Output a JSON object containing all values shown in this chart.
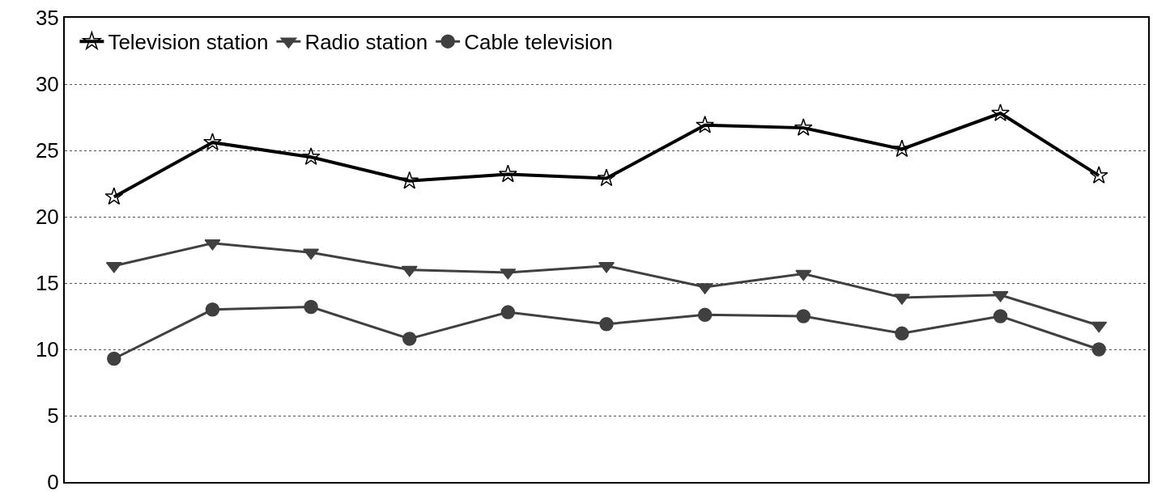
{
  "chart_data": {
    "type": "line",
    "categories": [
      null,
      null,
      null,
      null,
      null,
      null,
      null,
      null,
      null,
      null,
      null
    ],
    "series": [
      {
        "name": "Television station",
        "color": "#000000",
        "marker": "star",
        "values": [
          21.5,
          25.6,
          24.5,
          22.7,
          23.2,
          22.9,
          26.9,
          26.7,
          25.1,
          27.8,
          23.1
        ]
      },
      {
        "name": "Radio station",
        "color": "#404040",
        "marker": "triangle",
        "values": [
          16.3,
          18.0,
          17.3,
          16.0,
          15.8,
          16.3,
          14.7,
          15.7,
          13.9,
          14.1,
          11.8
        ]
      },
      {
        "name": "Cable television",
        "color": "#404040",
        "marker": "circle",
        "values": [
          9.3,
          13.0,
          13.2,
          10.8,
          12.8,
          11.9,
          12.6,
          12.5,
          11.2,
          12.5,
          10.0
        ]
      }
    ],
    "ylim": [
      0,
      35
    ],
    "yticks": [
      0,
      5,
      10,
      15,
      20,
      25,
      30,
      35
    ],
    "grid": "y",
    "legend": "top left",
    "line_style": "solid"
  }
}
